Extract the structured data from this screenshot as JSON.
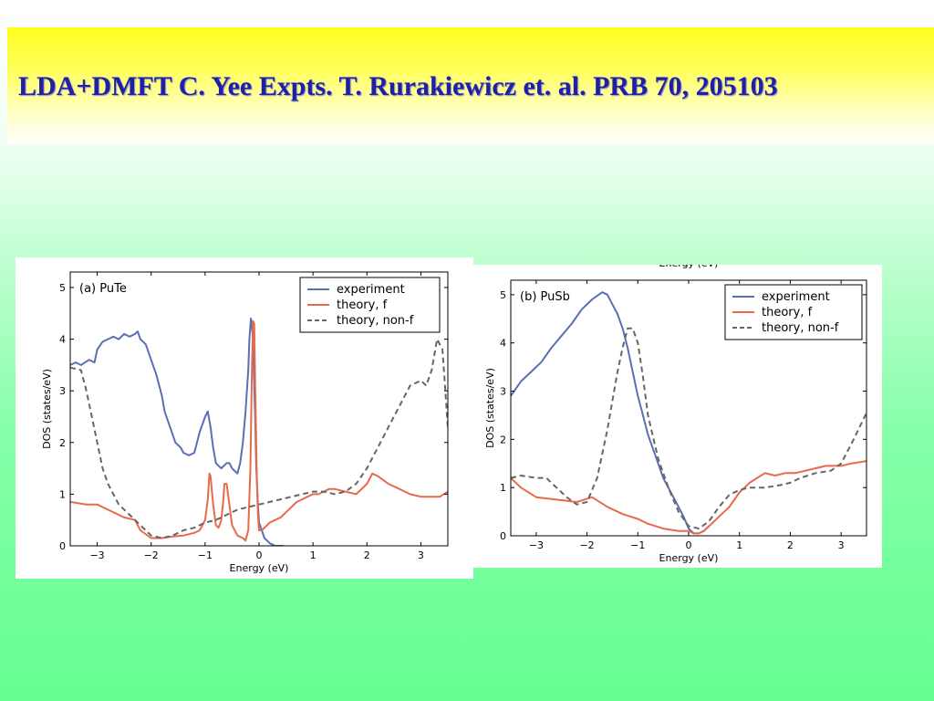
{
  "slide": {
    "title": "LDA+DMFT  C. Yee Expts. T. Rurakiewicz et. al. PRB 70, 205103"
  },
  "colors": {
    "experiment": "#5b6fb5",
    "theory_f": "#e86a4a",
    "theory_nonf": "#666666"
  },
  "chart_data": [
    {
      "type": "line",
      "panel_label": "(a) PuTe",
      "xlabel": "Energy (eV)",
      "ylabel": "DOS (states/eV)",
      "xlim": [
        -3.5,
        3.5
      ],
      "ylim": [
        0,
        5.3
      ],
      "xticks": [
        -3,
        -2,
        -1,
        0,
        1,
        2,
        3
      ],
      "yticks": [
        0,
        1,
        2,
        3,
        4,
        5
      ],
      "legend_position": "top-right",
      "series": [
        {
          "name": "experiment",
          "style": "solid",
          "color_key": "experiment",
          "x": [
            -3.5,
            -3.4,
            -3.3,
            -3.15,
            -3.05,
            -3.0,
            -2.9,
            -2.8,
            -2.7,
            -2.6,
            -2.5,
            -2.4,
            -2.3,
            -2.25,
            -2.2,
            -2.1,
            -2.0,
            -1.9,
            -1.8,
            -1.75,
            -1.65,
            -1.55,
            -1.45,
            -1.4,
            -1.3,
            -1.2,
            -1.15,
            -1.1,
            -1.0,
            -0.95,
            -0.9,
            -0.85,
            -0.8,
            -0.75,
            -0.7,
            -0.6,
            -0.55,
            -0.5,
            -0.4,
            -0.35,
            -0.3,
            -0.25,
            -0.2,
            -0.18,
            -0.15,
            -0.12,
            -0.1,
            -0.07,
            -0.05,
            -0.02,
            0.0,
            0.05,
            0.1,
            0.2,
            0.3,
            0.45
          ],
          "y": [
            3.5,
            3.55,
            3.5,
            3.6,
            3.55,
            3.8,
            3.95,
            4.0,
            4.05,
            4.0,
            4.1,
            4.05,
            4.1,
            4.15,
            4.0,
            3.9,
            3.6,
            3.3,
            2.9,
            2.6,
            2.3,
            2.0,
            1.9,
            1.8,
            1.75,
            1.8,
            2.0,
            2.2,
            2.5,
            2.6,
            2.3,
            1.9,
            1.6,
            1.55,
            1.5,
            1.6,
            1.6,
            1.5,
            1.4,
            1.6,
            2.0,
            2.6,
            3.4,
            4.0,
            4.4,
            4.1,
            3.5,
            2.4,
            1.5,
            0.8,
            0.45,
            0.3,
            0.15,
            0.05,
            0.0,
            0.0
          ]
        },
        {
          "name": "theory, f",
          "style": "solid",
          "color_key": "theory_f",
          "x": [
            -3.5,
            -3.2,
            -3.0,
            -2.8,
            -2.5,
            -2.3,
            -2.2,
            -2.0,
            -1.8,
            -1.6,
            -1.4,
            -1.2,
            -1.1,
            -1.0,
            -0.95,
            -0.92,
            -0.9,
            -0.85,
            -0.8,
            -0.75,
            -0.7,
            -0.67,
            -0.64,
            -0.6,
            -0.55,
            -0.5,
            -0.4,
            -0.3,
            -0.25,
            -0.2,
            -0.16,
            -0.13,
            -0.11,
            -0.09,
            -0.07,
            -0.04,
            -0.02,
            0.0,
            0.05,
            0.2,
            0.3,
            0.4,
            0.5,
            0.6,
            0.7,
            0.8,
            0.9,
            1.0,
            1.1,
            1.2,
            1.3,
            1.4,
            1.6,
            1.8,
            2.0,
            2.1,
            2.2,
            2.4,
            2.6,
            2.8,
            3.0,
            3.2,
            3.35,
            3.5
          ],
          "y": [
            0.85,
            0.8,
            0.8,
            0.7,
            0.55,
            0.5,
            0.3,
            0.15,
            0.15,
            0.18,
            0.2,
            0.25,
            0.3,
            0.5,
            0.9,
            1.4,
            1.35,
            0.8,
            0.4,
            0.35,
            0.5,
            0.8,
            1.2,
            1.2,
            0.8,
            0.4,
            0.2,
            0.15,
            0.1,
            0.3,
            1.5,
            3.5,
            4.35,
            4.3,
            3.0,
            1.3,
            0.6,
            0.3,
            0.3,
            0.45,
            0.5,
            0.55,
            0.65,
            0.75,
            0.85,
            0.9,
            0.95,
            1.0,
            1.0,
            1.05,
            1.1,
            1.1,
            1.05,
            1.0,
            1.2,
            1.4,
            1.35,
            1.2,
            1.1,
            1.0,
            0.95,
            0.95,
            0.95,
            1.05
          ]
        },
        {
          "name": "theory, non-f",
          "style": "dashed",
          "color_key": "theory_nonf",
          "x": [
            -3.5,
            -3.3,
            -3.2,
            -3.1,
            -3.0,
            -2.9,
            -2.8,
            -2.6,
            -2.4,
            -2.2,
            -2.0,
            -1.8,
            -1.6,
            -1.4,
            -1.2,
            -1.0,
            -0.8,
            -0.6,
            -0.4,
            -0.2,
            0.0,
            0.2,
            0.4,
            0.6,
            0.8,
            1.0,
            1.2,
            1.4,
            1.6,
            1.8,
            2.0,
            2.2,
            2.4,
            2.6,
            2.8,
            3.0,
            3.1,
            3.2,
            3.3,
            3.4,
            3.5
          ],
          "y": [
            3.45,
            3.4,
            3.0,
            2.5,
            2.0,
            1.5,
            1.2,
            0.8,
            0.6,
            0.4,
            0.2,
            0.15,
            0.2,
            0.3,
            0.35,
            0.45,
            0.5,
            0.6,
            0.7,
            0.75,
            0.8,
            0.85,
            0.9,
            0.95,
            1.0,
            1.05,
            1.05,
            1.0,
            1.05,
            1.2,
            1.5,
            1.9,
            2.3,
            2.7,
            3.1,
            3.2,
            3.1,
            3.4,
            4.0,
            3.8,
            2.3
          ]
        }
      ]
    },
    {
      "type": "line",
      "panel_label": "(b) PuSb",
      "xlabel": "Energy (eV)",
      "ylabel": "DOS (states/eV)",
      "top_axis_label": "Energy (eV)",
      "xlim": [
        -3.5,
        3.5
      ],
      "ylim": [
        0,
        5.3
      ],
      "xticks": [
        -3,
        -2,
        -1,
        0,
        1,
        2,
        3
      ],
      "yticks": [
        0,
        1,
        2,
        3,
        4,
        5
      ],
      "legend_position": "top-right",
      "series": [
        {
          "name": "experiment",
          "style": "solid",
          "color_key": "experiment",
          "x": [
            -3.5,
            -3.3,
            -3.1,
            -2.9,
            -2.7,
            -2.5,
            -2.3,
            -2.1,
            -1.9,
            -1.7,
            -1.6,
            -1.5,
            -1.4,
            -1.3,
            -1.2,
            -1.1,
            -1.0,
            -0.9,
            -0.8,
            -0.7,
            -0.6,
            -0.5,
            -0.4,
            -0.3,
            -0.2,
            -0.1,
            0.0,
            0.1,
            0.2,
            0.3,
            0.4
          ],
          "y": [
            2.9,
            3.2,
            3.4,
            3.6,
            3.9,
            4.15,
            4.4,
            4.7,
            4.9,
            5.05,
            5.0,
            4.8,
            4.6,
            4.3,
            3.9,
            3.4,
            2.9,
            2.5,
            2.1,
            1.8,
            1.5,
            1.2,
            1.0,
            0.8,
            0.6,
            0.4,
            0.15,
            0.05,
            0.05,
            0.1,
            0.2
          ]
        },
        {
          "name": "theory, f",
          "style": "solid",
          "color_key": "theory_f",
          "x": [
            -3.5,
            -3.3,
            -3.0,
            -2.6,
            -2.2,
            -1.9,
            -1.6,
            -1.3,
            -1.0,
            -0.8,
            -0.5,
            -0.2,
            0.0,
            0.1,
            0.2,
            0.3,
            0.5,
            0.8,
            1.0,
            1.2,
            1.5,
            1.7,
            1.9,
            2.1,
            2.3,
            2.5,
            2.7,
            3.0,
            3.2,
            3.5
          ],
          "y": [
            1.2,
            1.0,
            0.8,
            0.75,
            0.7,
            0.8,
            0.6,
            0.45,
            0.35,
            0.25,
            0.15,
            0.1,
            0.1,
            0.05,
            0.05,
            0.1,
            0.3,
            0.6,
            0.9,
            1.1,
            1.3,
            1.25,
            1.3,
            1.3,
            1.35,
            1.4,
            1.45,
            1.45,
            1.5,
            1.55
          ]
        },
        {
          "name": "theory, non-f",
          "style": "dashed",
          "color_key": "theory_nonf",
          "x": [
            -3.5,
            -3.3,
            -3.0,
            -2.8,
            -2.6,
            -2.4,
            -2.2,
            -2.0,
            -1.8,
            -1.6,
            -1.5,
            -1.4,
            -1.3,
            -1.2,
            -1.1,
            -1.0,
            -0.9,
            -0.8,
            -0.6,
            -0.4,
            -0.2,
            0.0,
            0.2,
            0.4,
            0.6,
            0.8,
            1.0,
            1.2,
            1.5,
            1.8,
            2.0,
            2.2,
            2.5,
            2.8,
            3.0,
            3.2,
            3.5
          ],
          "y": [
            1.2,
            1.25,
            1.2,
            1.2,
            1.0,
            0.8,
            0.65,
            0.7,
            1.2,
            2.2,
            2.8,
            3.4,
            3.9,
            4.3,
            4.3,
            4.0,
            3.3,
            2.5,
            1.6,
            1.0,
            0.5,
            0.2,
            0.15,
            0.3,
            0.6,
            0.85,
            0.95,
            1.0,
            1.0,
            1.05,
            1.1,
            1.2,
            1.3,
            1.35,
            1.5,
            1.9,
            2.55
          ]
        }
      ]
    }
  ]
}
